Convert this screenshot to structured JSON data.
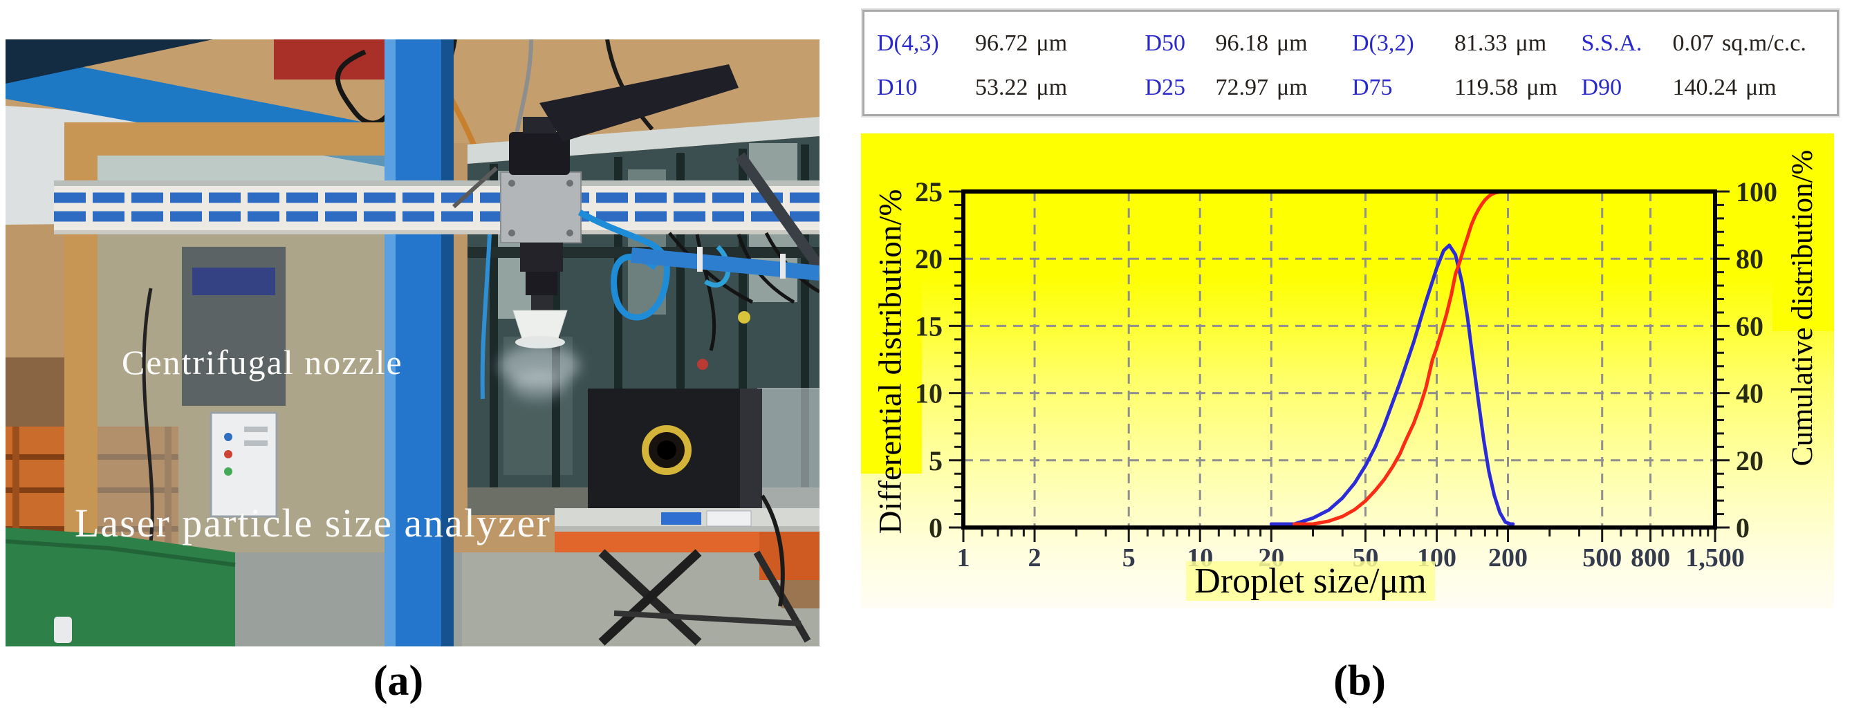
{
  "figure": {
    "caption_a": "(a)",
    "caption_b": "(b)",
    "photo": {
      "label_nozzle": "Centrifugal nozzle",
      "label_analyzer": "Laser particle size analyzer"
    }
  },
  "stats_table": {
    "rows": [
      [
        {
          "label": "D(4,3)",
          "value": "96.72",
          "unit": "μm"
        },
        {
          "label": "D50",
          "value": "96.18",
          "unit": "μm"
        },
        {
          "label": "D(3,2)",
          "value": "81.33",
          "unit": "μm"
        },
        {
          "label": "S.S.A.",
          "value": "0.07",
          "unit": "sq.m/c.c."
        }
      ],
      [
        {
          "label": "D10",
          "value": "53.22",
          "unit": "μm"
        },
        {
          "label": "D25",
          "value": "72.97",
          "unit": "μm"
        },
        {
          "label": "D75",
          "value": "119.58",
          "unit": "μm"
        },
        {
          "label": "D90",
          "value": "140.24",
          "unit": "μm"
        }
      ]
    ]
  },
  "chart_data": {
    "type": "line",
    "x_axis": {
      "label": "Droplet size/μm",
      "scale": "log",
      "min": 1,
      "max": 1500,
      "ticks": [
        1,
        2,
        5,
        10,
        20,
        50,
        100,
        200,
        500,
        800,
        1500
      ],
      "tick_labels": [
        "1",
        "2",
        "5",
        "10",
        "20",
        "50",
        "100",
        "200",
        "500",
        "800",
        "1,500"
      ],
      "minor_ticks": [
        1.2,
        1.4,
        1.6,
        1.8,
        3,
        4,
        6,
        7,
        8,
        9,
        12,
        14,
        16,
        18,
        30,
        40,
        60,
        70,
        80,
        90,
        120,
        140,
        160,
        180,
        300,
        400,
        600,
        700,
        900,
        1000,
        1100,
        1200,
        1300,
        1400
      ],
      "grid": "dashed"
    },
    "y_axis_left": {
      "label": "Differential distribution/%",
      "min": 0,
      "max": 25,
      "ticks": [
        0,
        5,
        10,
        15,
        20,
        25
      ],
      "minor_step": 1
    },
    "y_axis_right": {
      "label": "Cumulative distribution/%",
      "min": 0,
      "max": 100,
      "ticks": [
        0,
        20,
        40,
        60,
        80,
        100
      ],
      "minor_step": 4
    },
    "series": [
      {
        "name": "Differential distribution",
        "axis": "left",
        "color": "#2b2bd8",
        "points": [
          [
            20,
            0
          ],
          [
            25,
            0.2
          ],
          [
            30,
            0.7
          ],
          [
            35,
            1.3
          ],
          [
            40,
            2.2
          ],
          [
            45,
            3.3
          ],
          [
            50,
            4.6
          ],
          [
            55,
            6.0
          ],
          [
            60,
            7.6
          ],
          [
            70,
            10.8
          ],
          [
            80,
            13.8
          ],
          [
            90,
            16.8
          ],
          [
            100,
            19.3
          ],
          [
            107,
            20.6
          ],
          [
            113,
            21.0
          ],
          [
            120,
            20.3
          ],
          [
            128,
            18.2
          ],
          [
            135,
            15.6
          ],
          [
            142,
            12.6
          ],
          [
            150,
            9.4
          ],
          [
            158,
            6.5
          ],
          [
            166,
            4.2
          ],
          [
            175,
            2.4
          ],
          [
            185,
            1.1
          ],
          [
            195,
            0.4
          ],
          [
            205,
            0.08
          ],
          [
            210,
            0
          ]
        ]
      },
      {
        "name": "Cumulative distribution",
        "axis": "right",
        "color": "#fb2c16",
        "points": [
          [
            25,
            0
          ],
          [
            30,
            0.8
          ],
          [
            35,
            1.9
          ],
          [
            40,
            3.3
          ],
          [
            45,
            5.3
          ],
          [
            50,
            7.9
          ],
          [
            55,
            11
          ],
          [
            60,
            14.3
          ],
          [
            65,
            18
          ],
          [
            70,
            22
          ],
          [
            73,
            25
          ],
          [
            80,
            31
          ],
          [
            85,
            36
          ],
          [
            90,
            41.5
          ],
          [
            96,
            50
          ],
          [
            100,
            53.5
          ],
          [
            105,
            58.5
          ],
          [
            110,
            63.5
          ],
          [
            115,
            69
          ],
          [
            120,
            75.4
          ],
          [
            125,
            79
          ],
          [
            130,
            83
          ],
          [
            135,
            86.5
          ],
          [
            140,
            90
          ],
          [
            145,
            92.6
          ],
          [
            150,
            94.6
          ],
          [
            155,
            96.2
          ],
          [
            160,
            97.5
          ],
          [
            165,
            98.4
          ],
          [
            170,
            99.1
          ],
          [
            178,
            99.7
          ],
          [
            188,
            100
          ]
        ]
      }
    ],
    "plot_background": "yellow-gradient",
    "grid_color": "#8f8f8f",
    "frame_color": "#000000"
  }
}
